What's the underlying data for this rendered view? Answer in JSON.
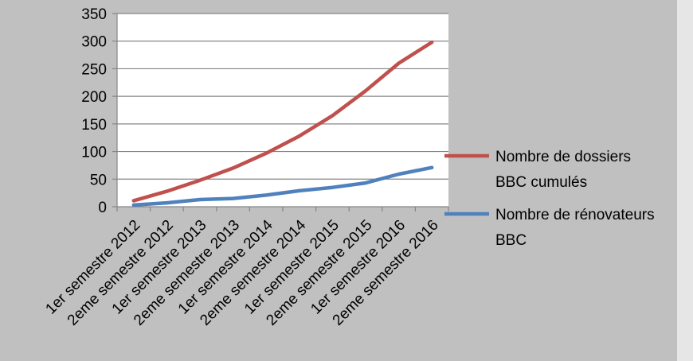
{
  "chart_data": {
    "type": "line",
    "title": "",
    "xlabel": "",
    "ylabel": "",
    "ylim": [
      0,
      350
    ],
    "yticks": [
      0,
      50,
      100,
      150,
      200,
      250,
      300,
      350
    ],
    "ytick_labels": [
      "0",
      "50",
      "100",
      "150",
      "200",
      "250",
      "300",
      "350"
    ],
    "grid": true,
    "legend_position": "right",
    "categories": [
      "1er semestre 2012",
      "2eme semestre 2012",
      "1er semestre 2013",
      "2eme semestre 2013",
      "1er semestre 2014",
      "2eme semestre 2014",
      "1er semestre 2015",
      "2eme semestre 2015",
      "1er semestre 2016",
      "2eme semestre 2016"
    ],
    "series": [
      {
        "name_lines": [
          "Nombre de dossiers",
          "BBC cumulés"
        ],
        "color": "#c0504d",
        "values": [
          11,
          28,
          48,
          70,
          97,
          128,
          165,
          210,
          260,
          298
        ]
      },
      {
        "name_lines": [
          "Nombre de rénovateurs",
          "BBC"
        ],
        "color": "#4f81bd",
        "values": [
          3,
          7,
          13,
          15,
          21,
          29,
          35,
          43,
          59,
          71
        ]
      }
    ]
  }
}
